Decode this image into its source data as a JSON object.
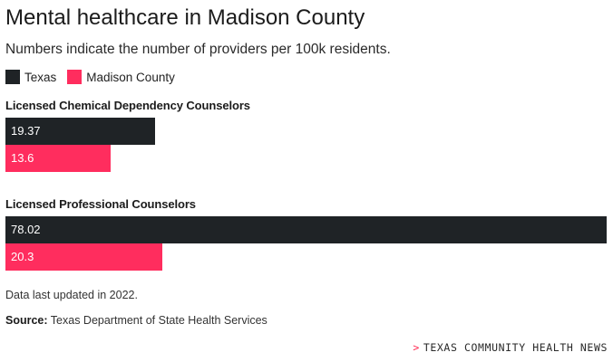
{
  "chart_data": {
    "type": "bar",
    "orientation": "horizontal",
    "title": "Mental healthcare in Madison County",
    "subtitle": "Numbers indicate the number of providers per 100k residents.",
    "categories": [
      "Licensed Chemical Dependency Counselors",
      "Licensed Professional Counselors"
    ],
    "series": [
      {
        "name": "Texas",
        "values": [
          19.37,
          78.02
        ],
        "labels": [
          "19.37",
          "78.02"
        ],
        "color": "#1f2326"
      },
      {
        "name": "Madison County",
        "values": [
          13.6,
          20.3
        ],
        "labels": [
          "13.6",
          "20.3"
        ],
        "color": "#ff2d5e"
      }
    ],
    "xlim": [
      0,
      78.02
    ],
    "legend_position": "top-left",
    "grid": false
  },
  "footer": {
    "note": "Data last updated in 2022.",
    "source_label": "Source:",
    "source_text": "Texas Department of State Health Services",
    "brand_chevron": ">",
    "brand": "TEXAS COMMUNITY HEALTH NEWS"
  }
}
